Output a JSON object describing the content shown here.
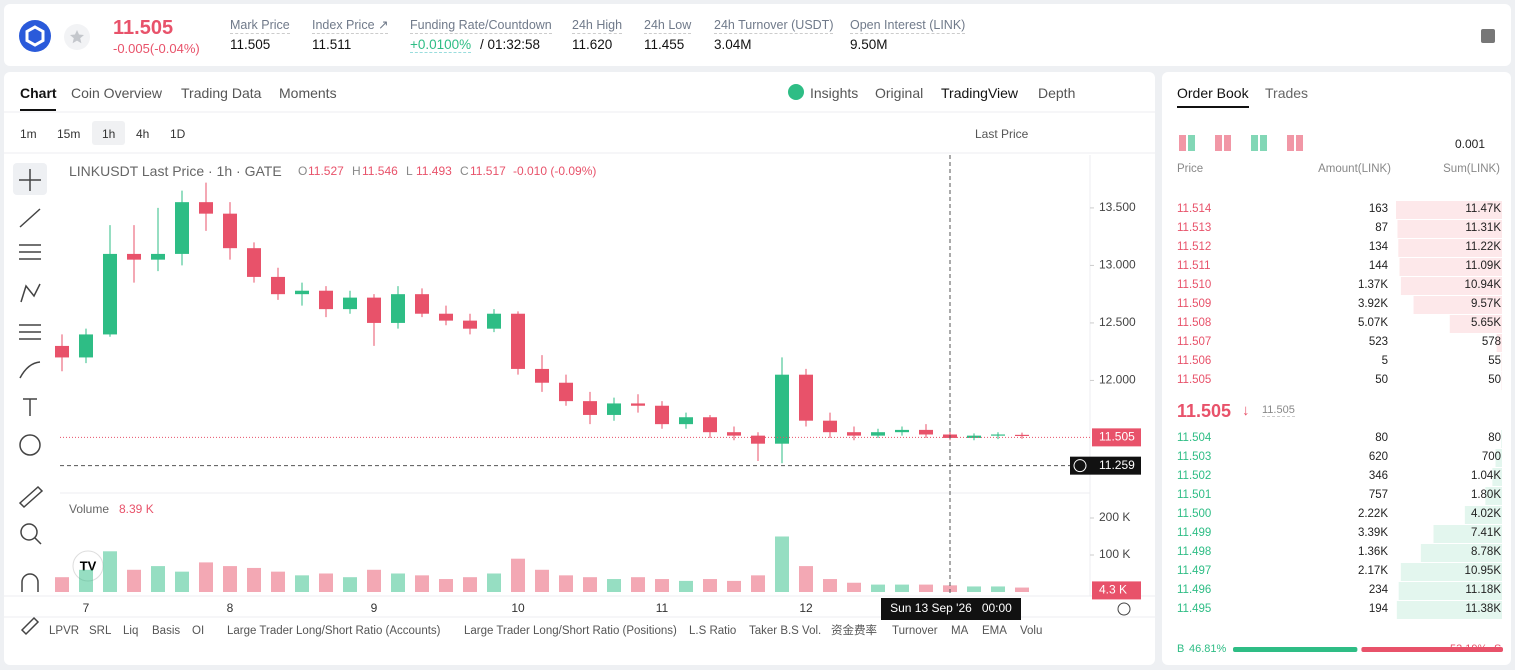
{
  "header": {
    "price": "11.505",
    "change": "-0.005(-0.04%)",
    "stats": [
      {
        "label": "Mark Price",
        "value": "11.505"
      },
      {
        "label": "Index Price ↗",
        "value": "11.511"
      },
      {
        "label": "Funding Rate/Countdown",
        "value": "+0.0100%",
        "extra": "/ 01:32:58"
      },
      {
        "label": "24h High",
        "value": "11.620"
      },
      {
        "label": "24h Low",
        "value": "11.455"
      },
      {
        "label": "24h Turnover (USDT)",
        "value": "3.04M"
      },
      {
        "label": "Open Interest (LINK)",
        "value": "9.50M"
      }
    ]
  },
  "chart_tabs": [
    "Chart",
    "Coin Overview",
    "Trading Data",
    "Moments"
  ],
  "view_tabs": [
    "Insights",
    "Original",
    "TradingView",
    "Depth"
  ],
  "intervals": [
    "1m",
    "15m",
    "1h",
    "4h",
    "1D"
  ],
  "price_type": "Last Price",
  "legend": {
    "symbol": "LINKUSDT Last Price · 1h · GATE",
    "ohlc": [
      [
        "O",
        "11.527"
      ],
      [
        "H",
        "11.546"
      ],
      [
        "L",
        "11.493"
      ],
      [
        "C",
        "11.517"
      ]
    ],
    "change": "-0.010 (-0.09%)"
  },
  "chart_data": {
    "type": "candlestick",
    "up_color": "#2ebd85",
    "down_color": "#e8526a",
    "categories": [
      null,
      "7",
      null,
      null,
      null,
      null,
      null,
      "8",
      null,
      null,
      null,
      null,
      null,
      "9",
      null,
      null,
      null,
      null,
      null,
      "10",
      null,
      null,
      null,
      null,
      null,
      "11",
      null,
      null,
      null,
      null,
      null,
      "12",
      null,
      null,
      null,
      null,
      null,
      null,
      null,
      null,
      null
    ],
    "ohlc": [
      [
        12.3,
        12.4,
        12.08,
        12.2
      ],
      [
        12.2,
        12.45,
        12.15,
        12.4
      ],
      [
        12.4,
        13.35,
        12.38,
        13.1
      ],
      [
        13.1,
        13.35,
        12.85,
        13.05
      ],
      [
        13.05,
        13.5,
        12.95,
        13.1
      ],
      [
        13.1,
        13.65,
        13.0,
        13.55
      ],
      [
        13.55,
        13.72,
        13.3,
        13.45
      ],
      [
        13.45,
        13.55,
        13.05,
        13.15
      ],
      [
        13.15,
        13.2,
        12.85,
        12.9
      ],
      [
        12.9,
        12.98,
        12.7,
        12.75
      ],
      [
        12.75,
        12.85,
        12.65,
        12.78
      ],
      [
        12.78,
        12.82,
        12.55,
        12.62
      ],
      [
        12.62,
        12.78,
        12.58,
        12.72
      ],
      [
        12.72,
        12.75,
        12.3,
        12.5
      ],
      [
        12.5,
        12.82,
        12.45,
        12.75
      ],
      [
        12.75,
        12.8,
        12.55,
        12.58
      ],
      [
        12.58,
        12.65,
        12.48,
        12.52
      ],
      [
        12.52,
        12.58,
        12.4,
        12.45
      ],
      [
        12.45,
        12.62,
        12.42,
        12.58
      ],
      [
        12.58,
        12.6,
        12.05,
        12.1
      ],
      [
        12.1,
        12.22,
        11.9,
        11.98
      ],
      [
        11.98,
        12.05,
        11.78,
        11.82
      ],
      [
        11.82,
        11.9,
        11.62,
        11.7
      ],
      [
        11.7,
        11.85,
        11.65,
        11.8
      ],
      [
        11.8,
        11.88,
        11.72,
        11.78
      ],
      [
        11.78,
        11.82,
        11.58,
        11.62
      ],
      [
        11.62,
        11.72,
        11.58,
        11.68
      ],
      [
        11.68,
        11.7,
        11.5,
        11.55
      ],
      [
        11.55,
        11.6,
        11.48,
        11.52
      ],
      [
        11.52,
        11.55,
        11.3,
        11.45
      ],
      [
        11.45,
        12.2,
        11.28,
        12.05
      ],
      [
        12.05,
        12.1,
        11.6,
        11.65
      ],
      [
        11.65,
        11.72,
        11.5,
        11.55
      ],
      [
        11.55,
        11.6,
        11.48,
        11.52
      ],
      [
        11.52,
        11.58,
        11.5,
        11.55
      ],
      [
        11.55,
        11.6,
        11.52,
        11.57
      ],
      [
        11.57,
        11.62,
        11.5,
        11.53
      ],
      [
        11.53,
        11.56,
        11.48,
        11.5
      ],
      [
        11.5,
        11.54,
        11.48,
        11.52
      ],
      [
        11.52,
        11.55,
        11.49,
        11.53
      ],
      [
        11.527,
        11.546,
        11.493,
        11.517
      ]
    ],
    "volumes": [
      40000,
      60000,
      110000,
      60000,
      70000,
      55000,
      80000,
      70000,
      65000,
      55000,
      45000,
      50000,
      40000,
      60000,
      50000,
      45000,
      35000,
      40000,
      50000,
      90000,
      60000,
      45000,
      40000,
      35000,
      40000,
      35000,
      30000,
      35000,
      30000,
      45000,
      150000,
      70000,
      35000,
      25000,
      20000,
      20000,
      20000,
      18000,
      15000,
      15000,
      12000
    ],
    "ylim": [
      11.03,
      13.96
    ],
    "yticks": [
      {
        "value": 13.5,
        "label": "13.500"
      },
      {
        "value": 13,
        "label": "13.000"
      },
      {
        "value": 12.5,
        "label": "12.500"
      },
      {
        "value": 12,
        "label": "12.000"
      }
    ],
    "last_price": {
      "value": 11.505,
      "label": "11.505"
    },
    "crosshair_price": {
      "value": 11.259,
      "label": "11.259"
    },
    "crosshair_time": "Sun 13 Sep '26   00:00",
    "crosshair_index": 37,
    "volume_title": "Volume",
    "volume_value": "8.39 K",
    "volume_ylim": [
      0,
      254000
    ],
    "volume_yticks": [
      {
        "value": 200000,
        "label": "200 K"
      },
      {
        "value": 100000,
        "label": "100 K"
      }
    ],
    "last_volume": {
      "value": 4300,
      "label": "4.3 K"
    }
  },
  "indicators": [
    "LPVR",
    "SRL",
    "Liq",
    "Basis",
    "OI",
    "Large Trader Long/Short Ratio (Accounts)",
    "Large Trader Long/Short Ratio (Positions)",
    "L.S Ratio",
    "Taker B.S Vol.",
    "资金费率",
    "Turnover",
    "MA",
    "EMA",
    "Volu"
  ],
  "order_book": {
    "tabs": [
      "Order Book",
      "Trades"
    ],
    "precision": "0.001",
    "headers": [
      "Price",
      "Amount(LINK)",
      "Sum(LINK)"
    ],
    "asks": [
      {
        "price": "11.514",
        "amount": "163",
        "sum": 11470,
        "sum_label": "11.47K"
      },
      {
        "price": "11.513",
        "amount": "87",
        "sum": 11310,
        "sum_label": "11.31K"
      },
      {
        "price": "11.512",
        "amount": "134",
        "sum": 11220,
        "sum_label": "11.22K"
      },
      {
        "price": "11.511",
        "amount": "144",
        "sum": 11090,
        "sum_label": "11.09K"
      },
      {
        "price": "11.510",
        "amount": "1.37K",
        "sum": 10940,
        "sum_label": "10.94K"
      },
      {
        "price": "11.509",
        "amount": "3.92K",
        "sum": 9570,
        "sum_label": "9.57K"
      },
      {
        "price": "11.508",
        "amount": "5.07K",
        "sum": 5650,
        "sum_label": "5.65K"
      },
      {
        "price": "11.507",
        "amount": "523",
        "sum": 578,
        "sum_label": "578"
      },
      {
        "price": "11.506",
        "amount": "5",
        "sum": 55,
        "sum_label": "55"
      },
      {
        "price": "11.505",
        "amount": "50",
        "sum": 50,
        "sum_label": "50"
      }
    ],
    "mid": {
      "price": "11.505",
      "arrow": "↓",
      "index": "11.505"
    },
    "bids": [
      {
        "price": "11.504",
        "amount": "80",
        "sum": 80,
        "sum_label": "80"
      },
      {
        "price": "11.503",
        "amount": "620",
        "sum": 700,
        "sum_label": "700"
      },
      {
        "price": "11.502",
        "amount": "346",
        "sum": 1040,
        "sum_label": "1.04K"
      },
      {
        "price": "11.501",
        "amount": "757",
        "sum": 1800,
        "sum_label": "1.80K"
      },
      {
        "price": "11.500",
        "amount": "2.22K",
        "sum": 4020,
        "sum_label": "4.02K"
      },
      {
        "price": "11.499",
        "amount": "3.39K",
        "sum": 7410,
        "sum_label": "7.41K"
      },
      {
        "price": "11.498",
        "amount": "1.36K",
        "sum": 8780,
        "sum_label": "8.78K"
      },
      {
        "price": "11.497",
        "amount": "2.17K",
        "sum": 10950,
        "sum_label": "10.95K"
      },
      {
        "price": "11.496",
        "amount": "234",
        "sum": 11180,
        "sum_label": "11.18K"
      },
      {
        "price": "11.495",
        "amount": "194",
        "sum": 11380,
        "sum_label": "11.38K"
      }
    ],
    "buy": {
      "letter": "B",
      "value": 46.81,
      "label": "46.81%"
    },
    "sell": {
      "letter": "S",
      "value": 53.19,
      "label": "53.19%"
    }
  }
}
